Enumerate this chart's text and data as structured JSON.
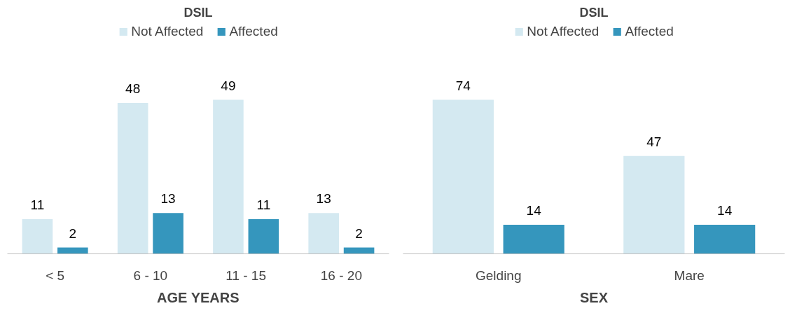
{
  "chart_data": [
    {
      "type": "bar",
      "title": "DSIL",
      "xlabel": "AGE YEARS",
      "categories": [
        "< 5",
        "6 - 10",
        "11 - 15",
        "16 - 20"
      ],
      "series": [
        {
          "name": "Not Affected",
          "color": "#d4e9f1",
          "values": [
            11,
            48,
            49,
            13
          ]
        },
        {
          "name": "Affected",
          "color": "#3596bd",
          "values": [
            2,
            13,
            11,
            2
          ]
        }
      ],
      "data_labels": true,
      "legend": "top",
      "grid": false,
      "tick_labels": "x"
    },
    {
      "type": "bar",
      "title": "DSIL",
      "xlabel": "SEX",
      "categories": [
        "Gelding",
        "Mare"
      ],
      "series": [
        {
          "name": "Not Affected",
          "color": "#d4e9f1",
          "values": [
            74,
            47
          ]
        },
        {
          "name": "Affected",
          "color": "#3596bd",
          "values": [
            14,
            14
          ]
        }
      ],
      "data_labels": true,
      "legend": "top",
      "grid": false,
      "tick_labels": "x"
    }
  ]
}
